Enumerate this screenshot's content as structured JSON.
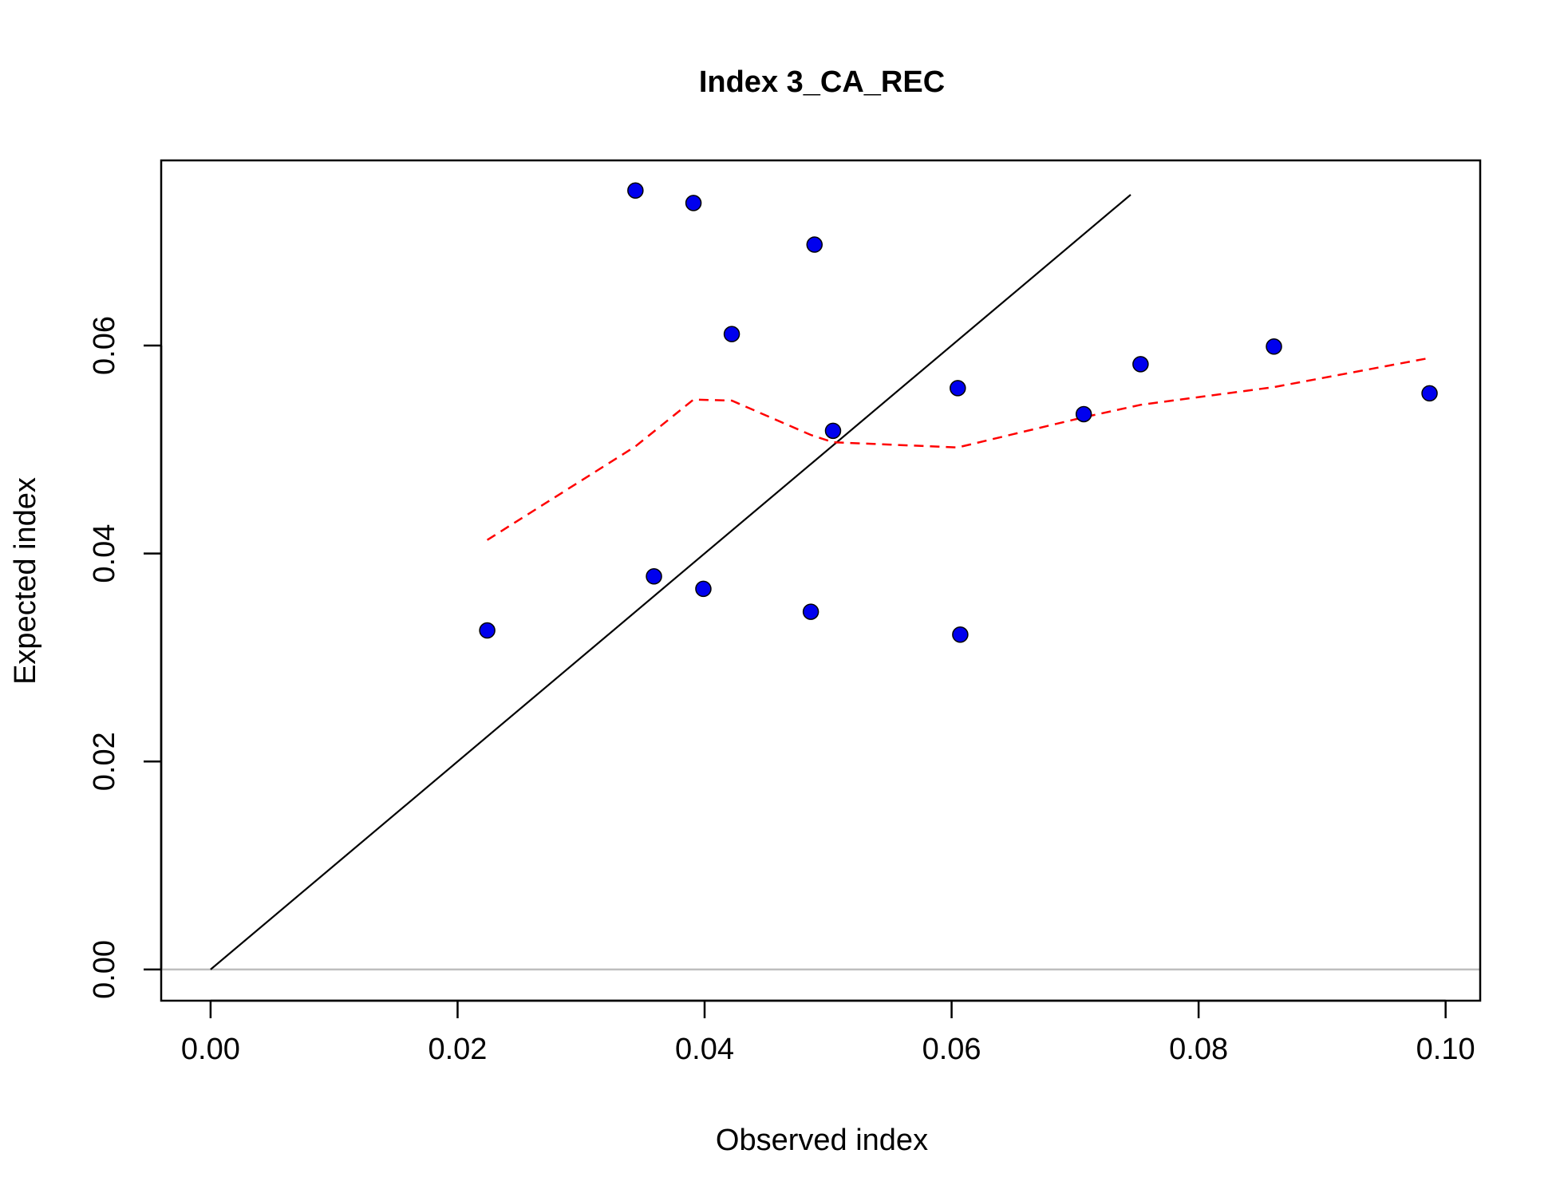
{
  "chart_data": {
    "type": "scatter",
    "title": "Index 3_CA_REC",
    "xlabel": "Observed index",
    "ylabel": "Expected index",
    "xlim": [
      -0.004,
      0.1028
    ],
    "ylim": [
      -0.003,
      0.0778
    ],
    "x_ticks": [
      {
        "value": 0.0,
        "label": "0.00"
      },
      {
        "value": 0.02,
        "label": "0.02"
      },
      {
        "value": 0.04,
        "label": "0.04"
      },
      {
        "value": 0.06,
        "label": "0.06"
      },
      {
        "value": 0.08,
        "label": "0.08"
      },
      {
        "value": 0.1,
        "label": "0.10"
      }
    ],
    "y_ticks": [
      {
        "value": 0.0,
        "label": "0.00"
      },
      {
        "value": 0.02,
        "label": "0.02"
      },
      {
        "value": 0.04,
        "label": "0.04"
      },
      {
        "value": 0.06,
        "label": "0.06"
      }
    ],
    "grid": false,
    "points": {
      "fill": "#0000ee",
      "stroke": "#000000",
      "x": [
        0.0224,
        0.0344,
        0.0359,
        0.0391,
        0.0399,
        0.0422,
        0.0486,
        0.0489,
        0.0504,
        0.0605,
        0.0607,
        0.0707,
        0.0753,
        0.0861,
        0.0987
      ],
      "y": [
        0.0326,
        0.0749,
        0.0378,
        0.0737,
        0.0366,
        0.0611,
        0.0344,
        0.0697,
        0.0518,
        0.0559,
        0.0322,
        0.0534,
        0.0582,
        0.0599,
        0.0554
      ]
    },
    "identity_line": {
      "color": "#000000",
      "x": [
        0.0,
        0.0745
      ],
      "y": [
        0.0,
        0.0745
      ]
    },
    "smoother": {
      "color": "#ff0000",
      "style": "dashed",
      "x": [
        0.0224,
        0.0344,
        0.0391,
        0.0422,
        0.0486,
        0.0504,
        0.0605,
        0.0707,
        0.0753,
        0.0861,
        0.0987
      ],
      "y": [
        0.0413,
        0.0503,
        0.0548,
        0.0547,
        0.0514,
        0.0507,
        0.0502,
        0.0531,
        0.0543,
        0.056,
        0.0588
      ]
    },
    "zero_line": {
      "color": "#bebebe",
      "y": 0.0
    }
  }
}
